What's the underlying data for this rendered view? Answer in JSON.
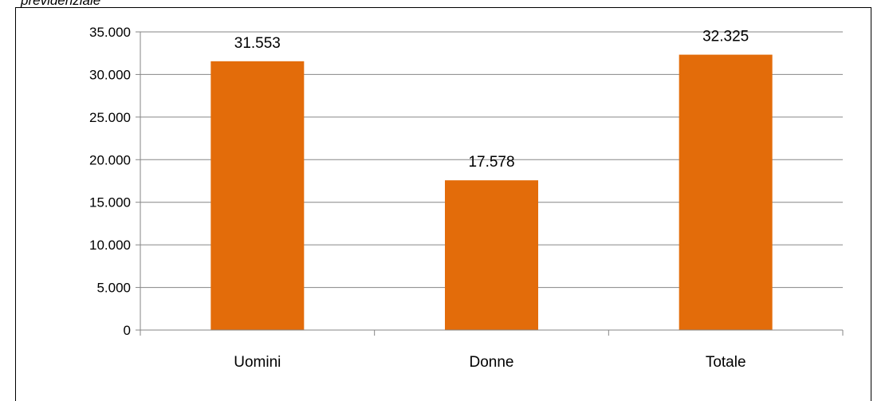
{
  "caption_fragment": "previdenziale",
  "colors": {
    "bar": "#e36c0a",
    "grid": "#868686",
    "axis": "#868686",
    "frame": "#000000"
  },
  "chart_data": {
    "type": "bar",
    "categories": [
      "Uomini",
      "Donne",
      "Totale"
    ],
    "values": [
      31553,
      17578,
      32325
    ],
    "value_labels": [
      "31.553",
      "17.578",
      "32.325"
    ],
    "y_ticks": [
      0,
      5000,
      10000,
      15000,
      20000,
      25000,
      30000,
      35000
    ],
    "y_tick_labels": [
      "0",
      "5.000",
      "10.000",
      "15.000",
      "20.000",
      "25.000",
      "30.000",
      "35.000"
    ],
    "ylim": [
      0,
      35000
    ],
    "grid": true,
    "legend": "none"
  }
}
